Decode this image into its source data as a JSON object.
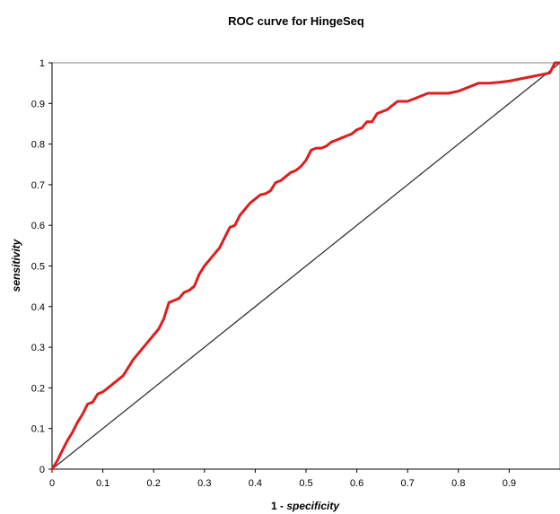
{
  "chart_data": {
    "type": "line",
    "title": "ROC curve for HingeSeq",
    "xlabel_prefix": "1 - ",
    "xlabel_emph": "specificity",
    "ylabel": "sensitivity",
    "xlim": [
      0,
      1
    ],
    "ylim": [
      0,
      1
    ],
    "x_ticks": [
      "0",
      "0.1",
      "0.2",
      "0.3",
      "0.4",
      "0.5",
      "0.6",
      "0.7",
      "0.8",
      "0.9"
    ],
    "y_ticks": [
      "0",
      "0.1",
      "0.2",
      "0.3",
      "0.4",
      "0.5",
      "0.6",
      "0.7",
      "0.8",
      "0.9",
      "1"
    ],
    "grid": false,
    "legend": "none",
    "series": [
      {
        "color": "#dd1f1f",
        "x": [
          0,
          0.01,
          0.02,
          0.03,
          0.04,
          0.05,
          0.06,
          0.07,
          0.08,
          0.09,
          0.1,
          0.11,
          0.12,
          0.13,
          0.14,
          0.15,
          0.16,
          0.17,
          0.18,
          0.19,
          0.2,
          0.21,
          0.22,
          0.23,
          0.24,
          0.25,
          0.26,
          0.27,
          0.28,
          0.29,
          0.3,
          0.31,
          0.32,
          0.33,
          0.34,
          0.35,
          0.36,
          0.37,
          0.38,
          0.39,
          0.4,
          0.41,
          0.42,
          0.43,
          0.44,
          0.45,
          0.46,
          0.47,
          0.48,
          0.49,
          0.5,
          0.51,
          0.52,
          0.53,
          0.54,
          0.55,
          0.56,
          0.57,
          0.58,
          0.59,
          0.6,
          0.61,
          0.62,
          0.63,
          0.64,
          0.65,
          0.66,
          0.67,
          0.68,
          0.69,
          0.7,
          0.72,
          0.74,
          0.76,
          0.78,
          0.8,
          0.82,
          0.84,
          0.86,
          0.88,
          0.9,
          0.92,
          0.94,
          0.96,
          0.98,
          0.99,
          1.0
        ],
        "values": [
          0,
          0.02,
          0.045,
          0.07,
          0.09,
          0.115,
          0.135,
          0.16,
          0.165,
          0.185,
          0.19,
          0.2,
          0.21,
          0.22,
          0.23,
          0.25,
          0.27,
          0.285,
          0.3,
          0.315,
          0.33,
          0.345,
          0.37,
          0.41,
          0.415,
          0.42,
          0.435,
          0.44,
          0.45,
          0.48,
          0.5,
          0.515,
          0.53,
          0.545,
          0.57,
          0.595,
          0.6,
          0.625,
          0.64,
          0.655,
          0.665,
          0.675,
          0.678,
          0.685,
          0.705,
          0.71,
          0.72,
          0.73,
          0.735,
          0.745,
          0.76,
          0.785,
          0.79,
          0.79,
          0.795,
          0.805,
          0.81,
          0.815,
          0.82,
          0.825,
          0.835,
          0.84,
          0.855,
          0.855,
          0.875,
          0.88,
          0.885,
          0.895,
          0.905,
          0.905,
          0.905,
          0.915,
          0.925,
          0.925,
          0.925,
          0.93,
          0.94,
          0.95,
          0.95,
          0.952,
          0.955,
          0.96,
          0.965,
          0.97,
          0.975,
          1.0,
          1.0
        ]
      },
      {
        "color": "#333333",
        "x": [
          0,
          1
        ],
        "values": [
          0,
          1
        ]
      }
    ]
  }
}
